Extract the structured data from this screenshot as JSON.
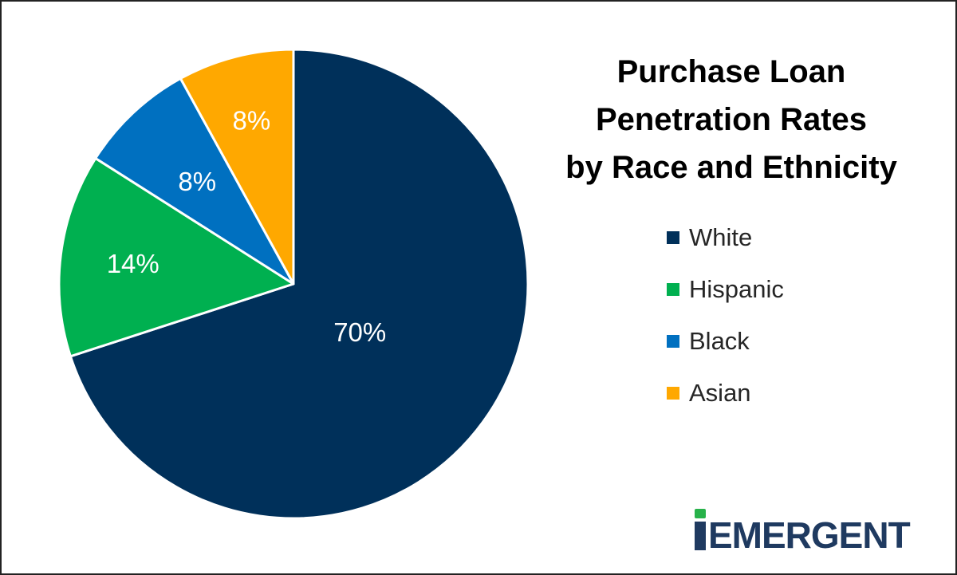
{
  "chart_data": {
    "type": "pie",
    "title_lines": [
      "Purchase Loan",
      "Penetration Rates",
      "by Race and Ethnicity"
    ],
    "slices": [
      {
        "name": "White",
        "value": 70,
        "label": "70%",
        "color": "#00305a"
      },
      {
        "name": "Hispanic",
        "value": 14,
        "label": "14%",
        "color": "#00b050"
      },
      {
        "name": "Black",
        "value": 8,
        "label": "8%",
        "color": "#0070c0"
      },
      {
        "name": "Asian",
        "value": 8,
        "label": "8%",
        "color": "#ffa800"
      }
    ],
    "legend_position": "right"
  },
  "logo": {
    "text": "iEMERGENT",
    "letter_i": "i",
    "rest": "EMERGENT"
  },
  "colors": {
    "label_text": "#ffffff",
    "border": "#222222",
    "logo_navy": "#1f3a60",
    "logo_green": "#27b24a"
  }
}
